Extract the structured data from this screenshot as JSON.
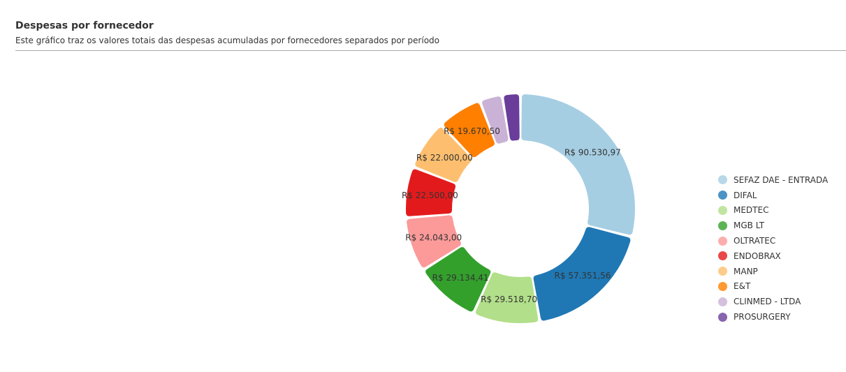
{
  "header": {
    "title": "Despesas por fornecedor",
    "subtitle": "Este gráfico traz os valores totais das despesas acumuladas por fornecedores separados por período"
  },
  "chart_data": {
    "type": "pie",
    "variant": "donut",
    "title": "Despesas por fornecedor",
    "legend_position": "right",
    "categories": [
      "SEFAZ DAE - ENTRADA",
      "DIFAL",
      "MEDTEC",
      "MGB LT",
      "OLTRATEC",
      "ENDOBRAX",
      "MANP",
      "E&T",
      "CLINMED - LTDA",
      "PROSURGERY"
    ],
    "values": [
      90530.97,
      57351.56,
      29518.7,
      29134.41,
      24043.0,
      22500.0,
      22000.0,
      19670.5,
      10000,
      8000
    ],
    "labels": [
      "R$ 90.530,97",
      "R$ 57.351,56",
      "R$ 29.518,70",
      "R$ 29.134,41",
      "R$ 24.043,00",
      "R$ 22.500,00",
      "R$ 22.000,00",
      "R$ 19.670,50",
      "",
      ""
    ],
    "colors": [
      "#a6cee3",
      "#1f78b4",
      "#b2df8a",
      "#33a02c",
      "#fb9a99",
      "#e31a1c",
      "#fdbf6f",
      "#ff7f00",
      "#cab2d6",
      "#6a3d9a"
    ]
  }
}
